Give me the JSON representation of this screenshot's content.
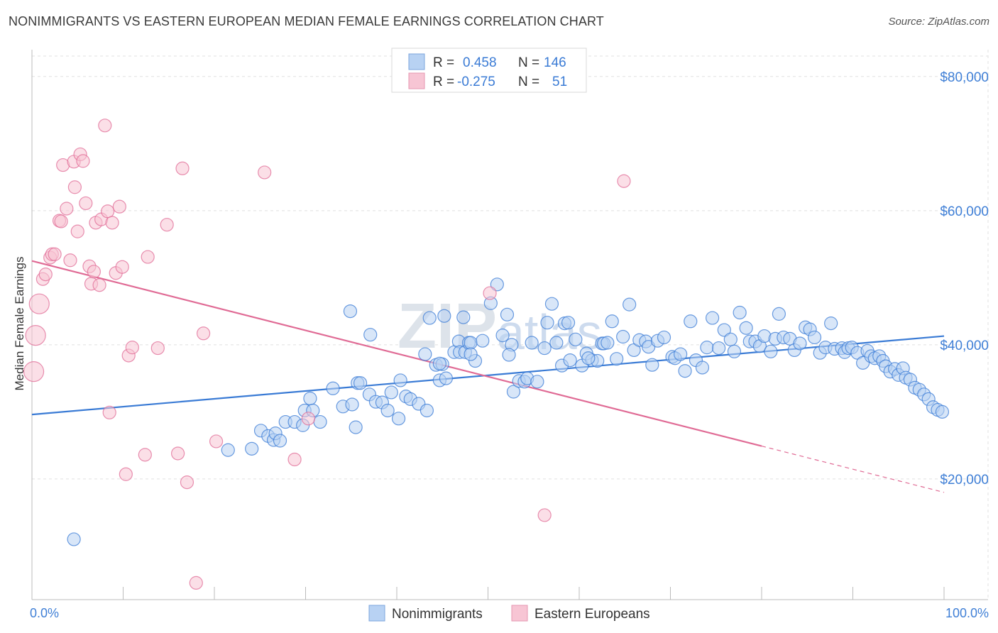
{
  "title": "NONIMMIGRANTS VS EASTERN EUROPEAN MEDIAN FEMALE EARNINGS CORRELATION CHART",
  "source": "Source: ZipAtlas.com",
  "watermark": {
    "part1": "ZIP",
    "part2": "atlas"
  },
  "colors": {
    "blue": "#3a7bd5",
    "blue_fill": "#b8d2f3",
    "pink": "#e06b95",
    "pink_fill": "#f7c5d4",
    "grid": "#e0e0e0",
    "axis_text": "#3f7fd6"
  },
  "legend": {
    "rows": [
      {
        "r_label": "R =",
        "r_value": "0.458",
        "n_label": "N =",
        "n_value": "146",
        "series": "blue"
      },
      {
        "r_label": "R =",
        "r_value": "-0.275",
        "n_label": "N =",
        "n_value": "51",
        "series": "pink"
      }
    ]
  },
  "bottom_legend": [
    {
      "label": "Nonimmigrants",
      "series": "blue"
    },
    {
      "label": "Eastern Europeans",
      "series": "pink"
    }
  ],
  "chart_data": {
    "type": "scatter",
    "title": "NONIMMIGRANTS VS EASTERN EUROPEAN MEDIAN FEMALE EARNINGS CORRELATION CHART",
    "xlabel": "",
    "ylabel": "Median Female Earnings",
    "xlim": [
      0,
      100
    ],
    "ylim": [
      2000,
      84000
    ],
    "x_tick_labels": [
      "0.0%",
      "100.0%"
    ],
    "y_ticks": [
      20000,
      40000,
      60000,
      80000
    ],
    "y_tick_labels": [
      "$20,000",
      "$40,000",
      "$60,000",
      "$80,000"
    ],
    "grid": true,
    "legend_position": "top-center",
    "series": [
      {
        "name": "Nonimmigrants",
        "color": "blue",
        "trend": {
          "x0": 0,
          "y0": 29600,
          "x1": 100,
          "y1": 41300,
          "dashed_from": null
        },
        "points": [
          [
            4.6,
            11000
          ],
          [
            21.5,
            24300
          ],
          [
            24.1,
            24500
          ],
          [
            25.1,
            27200
          ],
          [
            25.9,
            26400
          ],
          [
            26.5,
            25800
          ],
          [
            26.7,
            26800
          ],
          [
            27.2,
            25700
          ],
          [
            27.8,
            28500
          ],
          [
            28.8,
            28500
          ],
          [
            29.7,
            28000
          ],
          [
            29.9,
            30200
          ],
          [
            30.5,
            32000
          ],
          [
            30.8,
            30200
          ],
          [
            31.6,
            28500
          ],
          [
            33.0,
            33500
          ],
          [
            34.1,
            30800
          ],
          [
            35.1,
            31100
          ],
          [
            35.5,
            27700
          ],
          [
            35.7,
            34300
          ],
          [
            36.0,
            34300
          ],
          [
            34.9,
            45000
          ],
          [
            37.0,
            32600
          ],
          [
            37.1,
            41500
          ],
          [
            37.7,
            31500
          ],
          [
            38.4,
            31400
          ],
          [
            39.0,
            30200
          ],
          [
            39.4,
            32900
          ],
          [
            40.2,
            29000
          ],
          [
            40.4,
            34700
          ],
          [
            41.0,
            32300
          ],
          [
            41.5,
            31900
          ],
          [
            42.4,
            31200
          ],
          [
            43.3,
            30200
          ],
          [
            43.1,
            38600
          ],
          [
            44.3,
            37000
          ],
          [
            44.7,
            34700
          ],
          [
            45.0,
            37100
          ],
          [
            45.2,
            44300
          ],
          [
            45.4,
            35000
          ],
          [
            46.3,
            38900
          ],
          [
            46.8,
            40500
          ],
          [
            46.9,
            38900
          ],
          [
            47.3,
            44100
          ],
          [
            47.5,
            38900
          ],
          [
            47.9,
            40300
          ],
          [
            48.1,
            40300
          ],
          [
            48.6,
            37600
          ],
          [
            48.1,
            38600
          ],
          [
            49.4,
            40600
          ],
          [
            50.3,
            46200
          ],
          [
            51.0,
            49000
          ],
          [
            51.6,
            41400
          ],
          [
            52.1,
            44500
          ],
          [
            52.6,
            40000
          ],
          [
            52.8,
            33000
          ],
          [
            53.4,
            34600
          ],
          [
            54.0,
            34500
          ],
          [
            54.3,
            35000
          ],
          [
            54.8,
            40300
          ],
          [
            55.4,
            34500
          ],
          [
            56.2,
            39500
          ],
          [
            56.5,
            43300
          ],
          [
            57.0,
            46100
          ],
          [
            57.5,
            40300
          ],
          [
            58.1,
            36900
          ],
          [
            58.4,
            43200
          ],
          [
            59.0,
            37700
          ],
          [
            58.8,
            43300
          ],
          [
            59.6,
            40800
          ],
          [
            60.3,
            36900
          ],
          [
            60.8,
            38700
          ],
          [
            61.4,
            37700
          ],
          [
            62.0,
            37600
          ],
          [
            62.5,
            40200
          ],
          [
            62.7,
            40200
          ],
          [
            63.1,
            40300
          ],
          [
            63.6,
            43500
          ],
          [
            64.1,
            37900
          ],
          [
            64.8,
            41200
          ],
          [
            65.5,
            46000
          ],
          [
            66.0,
            39200
          ],
          [
            66.6,
            40700
          ],
          [
            67.3,
            40500
          ],
          [
            67.6,
            39700
          ],
          [
            68.0,
            37000
          ],
          [
            68.6,
            40600
          ],
          [
            69.3,
            41100
          ],
          [
            70.2,
            38200
          ],
          [
            70.5,
            38000
          ],
          [
            71.1,
            38600
          ],
          [
            71.6,
            36100
          ],
          [
            72.2,
            43500
          ],
          [
            72.8,
            37700
          ],
          [
            73.5,
            36600
          ],
          [
            74.0,
            39600
          ],
          [
            74.6,
            44000
          ],
          [
            75.3,
            39500
          ],
          [
            75.9,
            42200
          ],
          [
            76.6,
            40800
          ],
          [
            77.0,
            39000
          ],
          [
            77.6,
            44800
          ],
          [
            78.3,
            42500
          ],
          [
            78.7,
            40500
          ],
          [
            79.3,
            40500
          ],
          [
            79.8,
            39800
          ],
          [
            80.3,
            41300
          ],
          [
            81.0,
            39000
          ],
          [
            81.5,
            40900
          ],
          [
            81.9,
            44600
          ],
          [
            82.4,
            41100
          ],
          [
            83.1,
            40900
          ],
          [
            83.6,
            39200
          ],
          [
            84.2,
            40200
          ],
          [
            84.8,
            42600
          ],
          [
            85.3,
            42300
          ],
          [
            85.8,
            41100
          ],
          [
            86.4,
            38800
          ],
          [
            87.0,
            39600
          ],
          [
            87.6,
            43200
          ],
          [
            88.0,
            39400
          ],
          [
            88.8,
            39500
          ],
          [
            89.1,
            38900
          ],
          [
            89.5,
            39500
          ],
          [
            89.9,
            39600
          ],
          [
            90.5,
            38800
          ],
          [
            91.1,
            37300
          ],
          [
            91.6,
            39100
          ],
          [
            92.0,
            38300
          ],
          [
            92.4,
            38000
          ],
          [
            92.9,
            38300
          ],
          [
            93.3,
            37600
          ],
          [
            93.6,
            36800
          ],
          [
            94.1,
            36000
          ],
          [
            94.6,
            36400
          ],
          [
            95.0,
            35500
          ],
          [
            95.5,
            36500
          ],
          [
            95.8,
            35100
          ],
          [
            96.3,
            34800
          ],
          [
            96.8,
            33600
          ],
          [
            97.3,
            33300
          ],
          [
            97.8,
            32600
          ],
          [
            98.3,
            31900
          ],
          [
            98.8,
            30700
          ],
          [
            99.3,
            30300
          ],
          [
            99.8,
            30000
          ],
          [
            61.0,
            38000
          ],
          [
            43.6,
            44000
          ],
          [
            44.7,
            37200
          ],
          [
            52.3,
            38500
          ]
        ]
      },
      {
        "name": "Eastern Europeans",
        "color": "pink",
        "trend": {
          "x0": 0,
          "y0": 52500,
          "x1": 100,
          "y1": 18000,
          "dashed_from": 80
        },
        "points": [
          [
            0.2,
            36000
          ],
          [
            0.4,
            41400
          ],
          [
            0.8,
            46100
          ],
          [
            1.2,
            49800
          ],
          [
            1.5,
            50500
          ],
          [
            2.0,
            53000
          ],
          [
            2.2,
            53500
          ],
          [
            2.5,
            53500
          ],
          [
            3.0,
            58500
          ],
          [
            3.2,
            58400
          ],
          [
            3.4,
            66800
          ],
          [
            3.8,
            60300
          ],
          [
            4.2,
            52600
          ],
          [
            4.6,
            67300
          ],
          [
            4.7,
            63500
          ],
          [
            5.0,
            56900
          ],
          [
            5.3,
            68400
          ],
          [
            5.6,
            67400
          ],
          [
            5.9,
            61100
          ],
          [
            6.3,
            51700
          ],
          [
            6.5,
            49100
          ],
          [
            6.8,
            50900
          ],
          [
            7.0,
            58200
          ],
          [
            7.4,
            48900
          ],
          [
            7.6,
            58700
          ],
          [
            8.0,
            72700
          ],
          [
            8.3,
            59900
          ],
          [
            8.5,
            29900
          ],
          [
            8.8,
            58200
          ],
          [
            9.2,
            50700
          ],
          [
            9.6,
            60600
          ],
          [
            9.9,
            51600
          ],
          [
            10.3,
            20700
          ],
          [
            10.6,
            38400
          ],
          [
            11.0,
            39600
          ],
          [
            12.4,
            23600
          ],
          [
            12.7,
            53100
          ],
          [
            13.8,
            39500
          ],
          [
            14.8,
            57900
          ],
          [
            16.0,
            23800
          ],
          [
            16.5,
            66300
          ],
          [
            17.0,
            19500
          ],
          [
            18.0,
            4500
          ],
          [
            18.8,
            41700
          ],
          [
            20.2,
            25600
          ],
          [
            25.5,
            65700
          ],
          [
            28.8,
            22900
          ],
          [
            30.3,
            29000
          ],
          [
            50.2,
            47700
          ],
          [
            56.2,
            14600
          ],
          [
            64.9,
            64400
          ]
        ]
      }
    ]
  }
}
